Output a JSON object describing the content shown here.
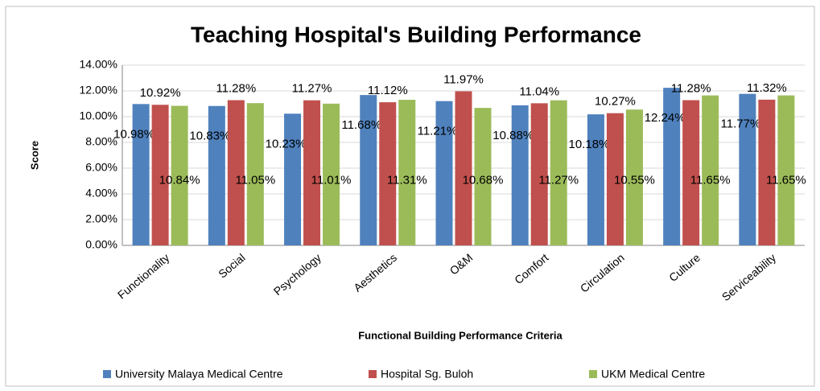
{
  "chart_data": {
    "type": "bar",
    "title": "Teaching Hospital's Building Performance",
    "y_label": "Score",
    "x_label": "Functional Building Performance Criteria",
    "categories": [
      "Functionality",
      "Social",
      "Psychology",
      "Aesthetics",
      "O&M",
      "Comfort",
      "Circulation",
      "Culture",
      "Serviceability"
    ],
    "series": [
      {
        "name": "University Malaya Medical Centre",
        "color": "#4f81bd",
        "values": [
          10.98,
          10.83,
          10.23,
          11.68,
          11.21,
          10.88,
          10.18,
          12.24,
          11.77
        ],
        "value_labels": [
          "10.98%",
          "10.83%",
          "10.23%",
          "11.68%",
          "11.21%",
          "10.88%",
          "10.18%",
          "12.24%",
          "11.77%"
        ]
      },
      {
        "name": "Hospital Sg. Buloh",
        "color": "#c0504d",
        "values": [
          10.92,
          11.28,
          11.27,
          11.12,
          11.97,
          11.04,
          10.27,
          11.28,
          11.32
        ],
        "value_labels": [
          "10.92%",
          "11.28%",
          "11.27%",
          "11.12%",
          "11.97%",
          "11.04%",
          "10.27%",
          "11.28%",
          "11.32%"
        ]
      },
      {
        "name": "UKM Medical Centre",
        "color": "#9bbb59",
        "values": [
          10.84,
          11.05,
          11.01,
          11.31,
          10.68,
          11.27,
          10.55,
          11.65,
          11.65
        ],
        "value_labels": [
          "10.84%",
          "11.05%",
          "11.01%",
          "11.31%",
          "10.68%",
          "11.27%",
          "10.55%",
          "11.65%",
          "11.65%"
        ]
      }
    ],
    "ylim": [
      0,
      14
    ],
    "yticks": [
      {
        "value": 0,
        "label": "0.00%"
      },
      {
        "value": 2,
        "label": "2.00%"
      },
      {
        "value": 4,
        "label": "4.00%"
      },
      {
        "value": 6,
        "label": "6.00%"
      },
      {
        "value": 8,
        "label": "8.00%"
      },
      {
        "value": 10,
        "label": "10.00%"
      },
      {
        "value": 12,
        "label": "12.00%"
      },
      {
        "value": 14,
        "label": "14.00%"
      }
    ],
    "grid": true,
    "legend": "bottom"
  }
}
